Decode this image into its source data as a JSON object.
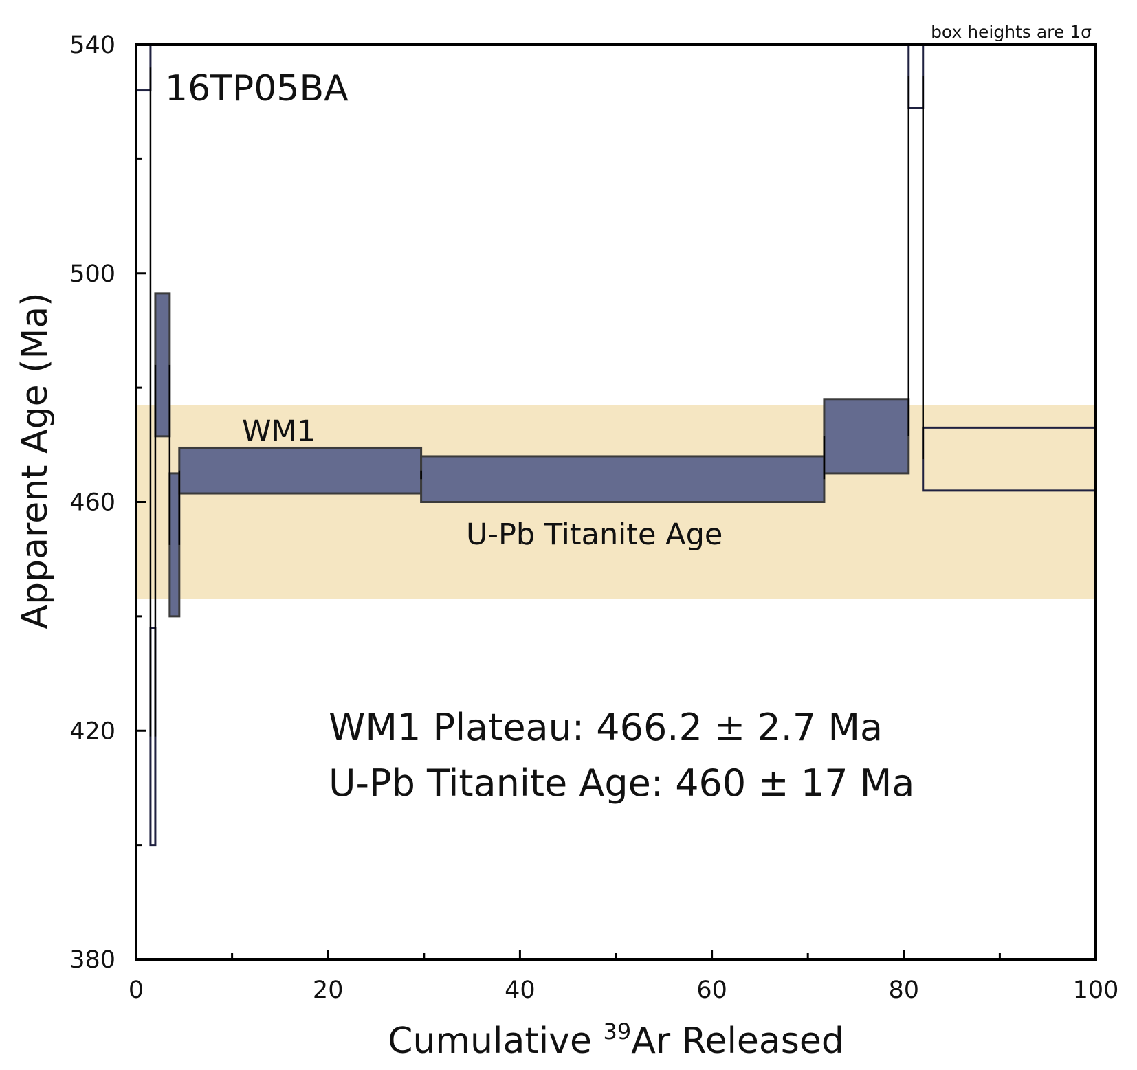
{
  "chart_data": {
    "type": "step-heating age spectrum",
    "sample_label": "16TP05BA",
    "box_note": "box heights are 1σ",
    "xlabel": {
      "prefix": "Cumulative ",
      "superscript": "39",
      "suffix": "Ar Released"
    },
    "ylabel": "Apparent Age (Ma)",
    "xlim": [
      0,
      100
    ],
    "ylim": [
      380,
      540
    ],
    "x_ticks": [
      0,
      20,
      40,
      60,
      80,
      100
    ],
    "x_minor_ticks": [
      10,
      30,
      50,
      70,
      90
    ],
    "y_ticks": [
      380,
      420,
      460,
      500,
      540
    ],
    "y_minor_ticks": [
      400,
      440,
      480,
      520
    ],
    "reference_band": {
      "label": "U-Pb Titanite Age",
      "age": 460,
      "uncertainty": 17,
      "ymin": 443,
      "ymax": 477,
      "color": "#f5e6c2"
    },
    "plateau_label": "WM1",
    "steps": [
      {
        "x0": 0.0,
        "x1": 1.5,
        "age_min": 532,
        "age_max": 545,
        "included": false
      },
      {
        "x0": 1.5,
        "x1": 2.0,
        "age_min": 400,
        "age_max": 438,
        "included": false
      },
      {
        "x0": 2.0,
        "x1": 3.5,
        "age_min": 471.5,
        "age_max": 496.5,
        "included": true
      },
      {
        "x0": 3.5,
        "x1": 4.5,
        "age_min": 440,
        "age_max": 465,
        "included": true
      },
      {
        "x0": 4.5,
        "x1": 29.7,
        "age_min": 461.5,
        "age_max": 469.5,
        "included": true
      },
      {
        "x0": 29.7,
        "x1": 71.7,
        "age_min": 460,
        "age_max": 468,
        "included": true
      },
      {
        "x0": 71.7,
        "x1": 80.5,
        "age_min": 465,
        "age_max": 478,
        "included": true
      },
      {
        "x0": 80.5,
        "x1": 82.0,
        "age_min": 529,
        "age_max": 545,
        "included": false
      },
      {
        "x0": 82.0,
        "x1": 100.0,
        "age_min": 462,
        "age_max": 473,
        "included": false
      }
    ],
    "results": [
      "WM1 Plateau: 466.2 ± 2.7 Ma",
      "U-Pb Titanite Age: 460 ± 17 Ma"
    ],
    "colors": {
      "included_fill": "#646b8f",
      "included_stroke": "#3b3b3b",
      "excluded_stroke": "#1f2140",
      "frame": "#000000"
    }
  }
}
